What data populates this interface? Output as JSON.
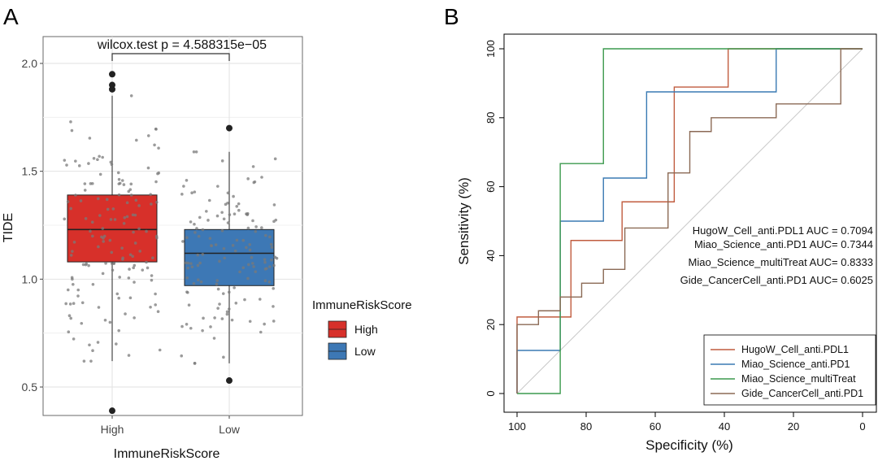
{
  "panel_a_label": "A",
  "panel_b_label": "B",
  "chart_data": [
    {
      "type": "box",
      "title": "wilcox.test p = 4.588315e−05",
      "xlabel": "ImmuneRiskScore",
      "ylabel": "TIDE",
      "categories": [
        "High",
        "Low"
      ],
      "ylim": [
        0.33,
        2.1
      ],
      "yticks": [
        0.5,
        1.0,
        1.5,
        2.0
      ],
      "ytick_labels": [
        "0.5",
        "1.0",
        "1.5",
        "2.0"
      ],
      "grid": true,
      "legend": {
        "title": "ImmuneRiskScore",
        "position": "right",
        "entries": [
          "High",
          "Low"
        ]
      },
      "colors": {
        "High": "#D7302A",
        "Low": "#3D78B5"
      },
      "boxes": [
        {
          "name": "High",
          "q1": 1.08,
          "median": 1.23,
          "q3": 1.39,
          "whisker_low": 0.62,
          "whisker_high": 1.85,
          "outliers": [
            0.39,
            1.88,
            1.9,
            1.95
          ]
        },
        {
          "name": "Low",
          "q1": 0.97,
          "median": 1.12,
          "q3": 1.23,
          "whisker_low": 0.61,
          "whisker_high": 1.59,
          "outliers": [
            0.53,
            1.7
          ]
        }
      ]
    },
    {
      "type": "line",
      "xlabel": "Specificity (%)",
      "ylabel": "Sensitivity (%)",
      "xlim": [
        100,
        0
      ],
      "ylim": [
        0,
        100
      ],
      "xticks": [
        100,
        80,
        60,
        40,
        20,
        0
      ],
      "yticks": [
        0,
        20,
        40,
        60,
        80,
        100
      ],
      "legend_position": "bottom-right",
      "auc_labels": [
        "HugoW_Cell_anti.PDL1 AUC = 0.7094",
        "Miao_Science_anti.PD1 AUC= 0.7344",
        "Miao_Science_multiTreat AUC= 0.8333",
        "Gide_CancerCell_anti.PD1 AUC= 0.6025"
      ],
      "series": [
        {
          "name": "HugoW_Cell_anti.PDL1",
          "color": "#C15C3F",
          "x": [
            100,
            100,
            84.4,
            84.4,
            69.6,
            69.6,
            54.5,
            54.5,
            38.9,
            38.9,
            0
          ],
          "y": [
            0,
            22.2,
            22.2,
            44.4,
            44.4,
            55.6,
            55.6,
            88.9,
            88.9,
            100,
            100
          ]
        },
        {
          "name": "Miao_Science_anti.PD1",
          "color": "#3A7AB3",
          "x": [
            100,
            100,
            87.5,
            87.5,
            75,
            75,
            62.5,
            62.5,
            25,
            25,
            0
          ],
          "y": [
            0,
            12.5,
            12.5,
            50,
            50,
            62.5,
            62.5,
            87.5,
            87.5,
            100,
            100
          ]
        },
        {
          "name": "Miao_Science_multiTreat",
          "color": "#3C9A4E",
          "x": [
            100,
            100,
            87.5,
            87.5,
            75,
            75,
            0
          ],
          "y": [
            0,
            0,
            0,
            66.7,
            66.7,
            100,
            100
          ]
        },
        {
          "name": "Gide_CancerCell_anti.PD1",
          "color": "#8B6A55",
          "x": [
            100,
            100,
            93.8,
            93.8,
            87.5,
            87.5,
            81.3,
            81.3,
            75,
            75,
            68.8,
            68.8,
            56.3,
            56.3,
            50,
            50,
            43.8,
            43.8,
            37.5,
            37.5,
            25,
            25,
            6.3,
            6.3,
            0
          ],
          "y": [
            0,
            20,
            20,
            24,
            24,
            28,
            28,
            32,
            32,
            36,
            36,
            48,
            48,
            64,
            64,
            76,
            76,
            80,
            80,
            80,
            80,
            84,
            84,
            100,
            100
          ]
        }
      ]
    }
  ]
}
